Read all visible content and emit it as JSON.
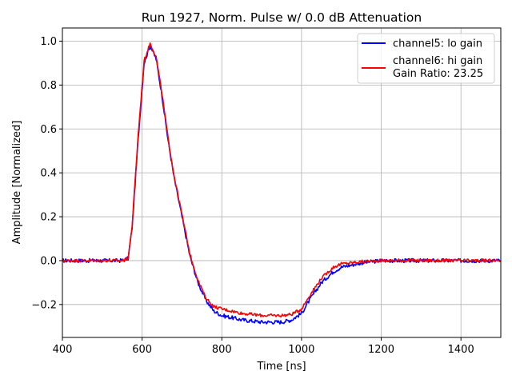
{
  "chart_data": {
    "type": "line",
    "title": "Run 1927, Norm. Pulse w/ 0.0 dB Attenuation",
    "xlabel": "Time [ns]",
    "ylabel": "Amplitude [Normalized]",
    "xlim": [
      400,
      1500
    ],
    "ylim": [
      -0.35,
      1.06
    ],
    "grid": true,
    "legend_position": "top-right",
    "x_ticks": [
      400,
      600,
      800,
      1000,
      1200,
      1400
    ],
    "x_tick_labels": [
      "400",
      "600",
      "800",
      "1000",
      "1200",
      "1400"
    ],
    "y_ticks": [
      -0.2,
      0.0,
      0.2,
      0.4,
      0.6,
      0.8,
      1.0
    ],
    "y_tick_labels": [
      "−0.2",
      "0.0",
      "0.2",
      "0.4",
      "0.6",
      "0.8",
      "1.0"
    ],
    "series": [
      {
        "name": "channel5: lo gain",
        "color": "#0000ff",
        "x": [
          400,
          450,
          500,
          550,
          565,
          575,
          590,
          605,
          620,
          635,
          650,
          665,
          680,
          700,
          720,
          740,
          760,
          780,
          800,
          850,
          900,
          950,
          975,
          1000,
          1020,
          1050,
          1080,
          1100,
          1150,
          1200,
          1300,
          1400,
          1500
        ],
        "values": [
          0.0,
          0.0,
          0.0,
          0.0,
          0.01,
          0.15,
          0.55,
          0.9,
          0.98,
          0.92,
          0.75,
          0.55,
          0.38,
          0.2,
          0.02,
          -0.1,
          -0.18,
          -0.23,
          -0.25,
          -0.27,
          -0.28,
          -0.28,
          -0.27,
          -0.24,
          -0.18,
          -0.1,
          -0.05,
          -0.03,
          -0.01,
          0.0,
          0.0,
          0.0,
          0.0
        ]
      },
      {
        "name": "channel6: hi gain",
        "legend_extra": "Gain Ratio: 23.25",
        "color": "#ff0000",
        "x": [
          400,
          450,
          500,
          550,
          565,
          575,
          590,
          605,
          620,
          635,
          650,
          665,
          680,
          700,
          720,
          740,
          760,
          780,
          800,
          850,
          900,
          950,
          975,
          1000,
          1020,
          1050,
          1080,
          1100,
          1150,
          1200,
          1300,
          1400,
          1500
        ],
        "values": [
          0.0,
          0.0,
          0.0,
          0.0,
          0.01,
          0.16,
          0.57,
          0.91,
          0.99,
          0.93,
          0.76,
          0.56,
          0.39,
          0.21,
          0.03,
          -0.09,
          -0.17,
          -0.21,
          -0.22,
          -0.24,
          -0.25,
          -0.25,
          -0.245,
          -0.22,
          -0.16,
          -0.08,
          -0.03,
          -0.015,
          -0.005,
          0.0,
          0.0,
          0.0,
          0.0
        ]
      }
    ]
  }
}
